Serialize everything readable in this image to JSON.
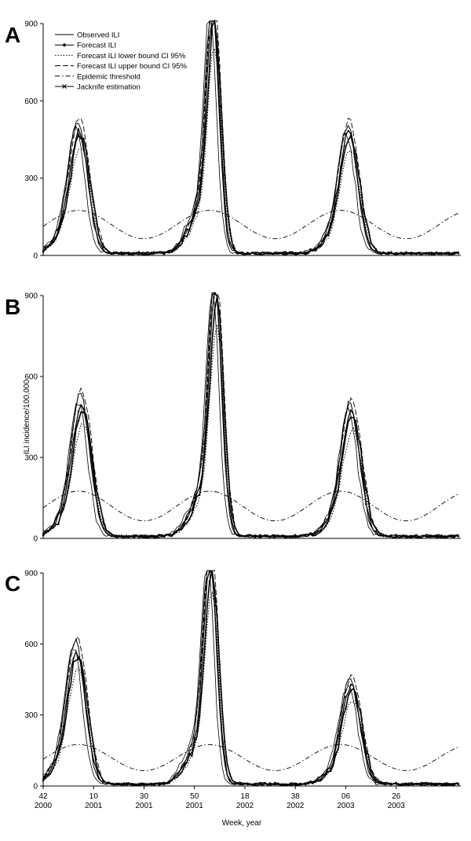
{
  "chart_data": [
    {
      "panel": "A",
      "type": "line",
      "ylim": [
        0,
        900
      ],
      "yticks": [
        "0",
        "300",
        "600",
        "900"
      ],
      "legend": {
        "placement": "top-left",
        "entries": [
          "Observed ILI",
          "Forecast ILI",
          "Forecast ILI lower bound CI 95%",
          "Forecast ILI upper bound CI 95%",
          "Epidemic threshold",
          "Jacknife estimation"
        ]
      },
      "peaks": [
        {
          "week": "04 2001",
          "value": 460
        },
        {
          "week": "05 2002",
          "value": 900
        },
        {
          "week": "07 2003",
          "value": 450
        }
      ],
      "threshold": {
        "max": 175,
        "min": 65
      }
    },
    {
      "panel": "B",
      "type": "line",
      "ylabel": "ILI incidence/100,000",
      "ylim": [
        0,
        900
      ],
      "yticks": [
        "0",
        "300",
        "600",
        "900"
      ],
      "peaks": [
        {
          "week": "05 2001",
          "value": 470
        },
        {
          "week": "06 2002",
          "value": 880
        },
        {
          "week": "08 2003",
          "value": 445
        }
      ],
      "threshold": {
        "max": 175,
        "min": 65
      }
    },
    {
      "panel": "C",
      "type": "line",
      "ylim": [
        0,
        900
      ],
      "yticks": [
        "0",
        "300",
        "600",
        "900"
      ],
      "xlabel": "Week, year",
      "xticks": [
        {
          "week": "42",
          "year": "2000"
        },
        {
          "week": "10",
          "year": "2001"
        },
        {
          "week": "30",
          "year": "2001"
        },
        {
          "week": "50",
          "year": "2001"
        },
        {
          "week": "18",
          "year": "2002"
        },
        {
          "week": "38",
          "year": "2002"
        },
        {
          "week": "06",
          "year": "2003"
        },
        {
          "week": "26",
          "year": "2003"
        }
      ],
      "peaks": [
        {
          "week": "03 2001",
          "value": 545
        },
        {
          "week": "04 2002",
          "value": 910
        },
        {
          "week": "08 2003",
          "value": 405
        }
      ],
      "threshold": {
        "max": 175,
        "min": 65
      }
    }
  ]
}
